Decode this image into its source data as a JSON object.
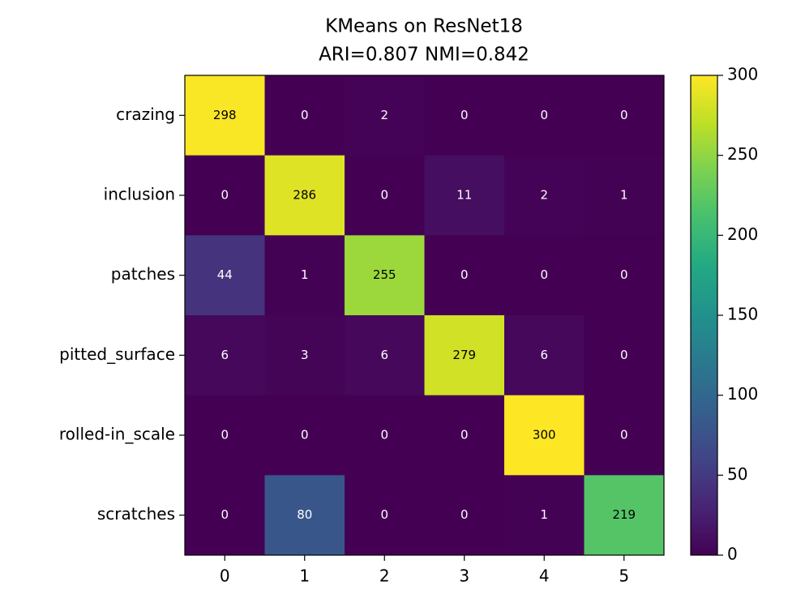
{
  "chart_data": {
    "type": "heatmap",
    "title": "KMeans on ResNet18",
    "subtitle": "ARI=0.807  NMI=0.842",
    "row_categories": [
      "crazing",
      "inclusion",
      "patches",
      "pitted_surface",
      "rolled-in_scale",
      "scratches"
    ],
    "col_categories": [
      "0",
      "1",
      "2",
      "3",
      "4",
      "5"
    ],
    "values": [
      [
        298,
        0,
        2,
        0,
        0,
        0
      ],
      [
        0,
        286,
        0,
        11,
        2,
        1
      ],
      [
        44,
        1,
        255,
        0,
        0,
        0
      ],
      [
        6,
        3,
        6,
        279,
        6,
        0
      ],
      [
        0,
        0,
        0,
        0,
        300,
        0
      ],
      [
        0,
        80,
        0,
        0,
        1,
        219
      ]
    ],
    "colormap": "viridis",
    "zlim": [
      0,
      300
    ],
    "zticks": [
      0,
      50,
      100,
      150,
      200,
      250,
      300
    ]
  }
}
